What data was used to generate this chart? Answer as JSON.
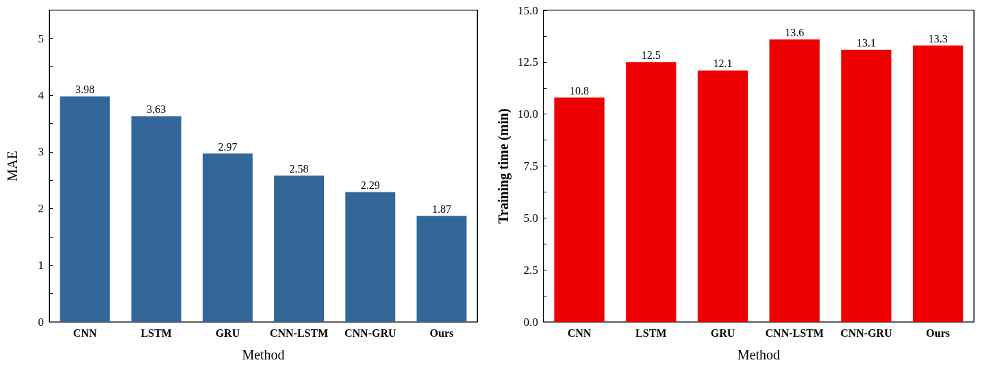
{
  "chart_data": [
    {
      "type": "bar",
      "xlabel": "Method",
      "ylabel": "MAE",
      "categories": [
        "CNN",
        "LSTM",
        "GRU",
        "CNN-LSTM",
        "CNN-GRU",
        "Ours"
      ],
      "values": [
        3.98,
        3.63,
        2.97,
        2.58,
        2.29,
        1.87
      ],
      "color": "#33679a",
      "ylim": [
        0,
        5.5
      ],
      "yticks": [
        0,
        {
          "value": 0.5,
          "label": null
        },
        1,
        {
          "value": 1.5,
          "label": null
        },
        2,
        {
          "value": 2.5,
          "label": null
        },
        3,
        {
          "value": 3.5,
          "label": null
        },
        4,
        {
          "value": 4.5,
          "label": null
        },
        5
      ],
      "data_labels": true
    },
    {
      "type": "bar",
      "xlabel": "Method",
      "ylabel": "Training time (min)",
      "categories": [
        "CNN",
        "LSTM",
        "GRU",
        "CNN-LSTM",
        "CNN-GRU",
        "Ours"
      ],
      "values": [
        10.8,
        12.5,
        12.1,
        13.6,
        13.1,
        13.3
      ],
      "color": "#ee0000",
      "ylim": [
        0,
        15
      ],
      "yticks": [
        {
          "value": 0,
          "label": "0.0"
        },
        {
          "value": 1.25,
          "label": null
        },
        {
          "value": 2.5,
          "label": "2.5"
        },
        {
          "value": 3.75,
          "label": null
        },
        {
          "value": 5,
          "label": "5.0"
        },
        {
          "value": 6.25,
          "label": null
        },
        {
          "value": 7.5,
          "label": "7.5"
        },
        {
          "value": 8.75,
          "label": null
        },
        {
          "value": 10,
          "label": "10.0"
        },
        {
          "value": 11.25,
          "label": null
        },
        {
          "value": 12.5,
          "label": "12.5"
        },
        {
          "value": 13.75,
          "label": null
        },
        {
          "value": 15,
          "label": "15.0"
        }
      ],
      "data_labels": true
    }
  ]
}
